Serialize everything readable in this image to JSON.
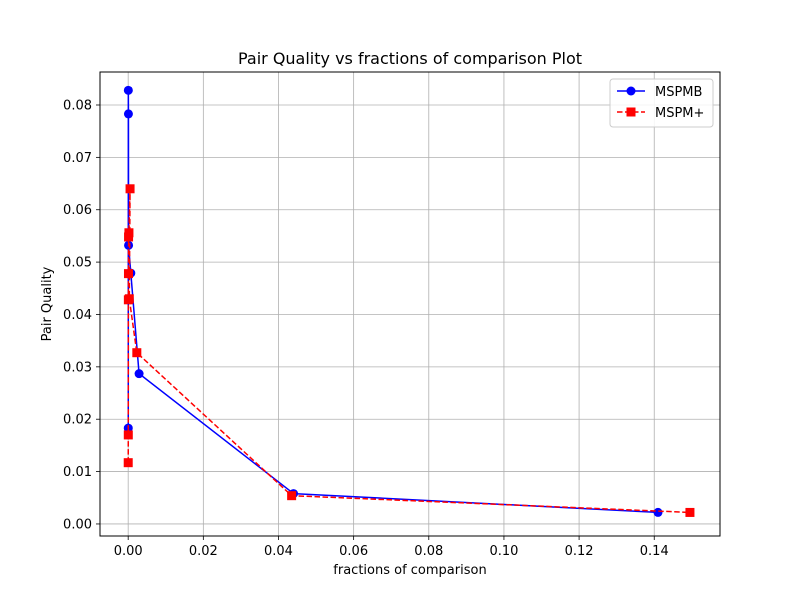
{
  "chart_data": {
    "type": "line",
    "title": "Pair Quality vs fractions of comparison Plot",
    "xlabel": "fractions of comparison",
    "ylabel": "Pair Quality",
    "xlim": [
      -0.0075,
      0.1575
    ],
    "ylim": [
      -0.0023,
      0.0863
    ],
    "xticks": [
      0.0,
      0.02,
      0.04,
      0.06,
      0.08,
      0.1,
      0.12,
      0.14
    ],
    "xtick_labels": [
      "0.00",
      "0.02",
      "0.04",
      "0.06",
      "0.08",
      "0.10",
      "0.12",
      "0.14"
    ],
    "yticks": [
      0.0,
      0.01,
      0.02,
      0.03,
      0.04,
      0.05,
      0.06,
      0.07,
      0.08
    ],
    "ytick_labels": [
      "0.00",
      "0.01",
      "0.02",
      "0.03",
      "0.04",
      "0.05",
      "0.06",
      "0.07",
      "0.08"
    ],
    "grid": true,
    "legend_position": "top-right",
    "series": [
      {
        "name": "MSPMB",
        "color": "#0000ff",
        "line_style": "solid",
        "marker": "circle",
        "x": [
          2e-05,
          4e-05,
          7e-05,
          0.0001,
          0.0007,
          0.0029,
          0.044,
          0.141
        ],
        "y": [
          0.0183,
          0.0828,
          0.0783,
          0.0532,
          0.0479,
          0.0287,
          0.0058,
          0.0022
        ]
      },
      {
        "name": "MSPM+",
        "color": "#ff0000",
        "line_style": "dashed",
        "marker": "square",
        "x": [
          1e-05,
          3e-05,
          5e-05,
          8e-05,
          0.0001,
          0.0002,
          0.0005,
          0.0003,
          0.0023,
          0.0435,
          0.1495
        ],
        "y": [
          0.0117,
          0.017,
          0.0428,
          0.0478,
          0.0548,
          0.0556,
          0.064,
          0.043,
          0.0327,
          0.0054,
          0.0022
        ]
      }
    ]
  }
}
